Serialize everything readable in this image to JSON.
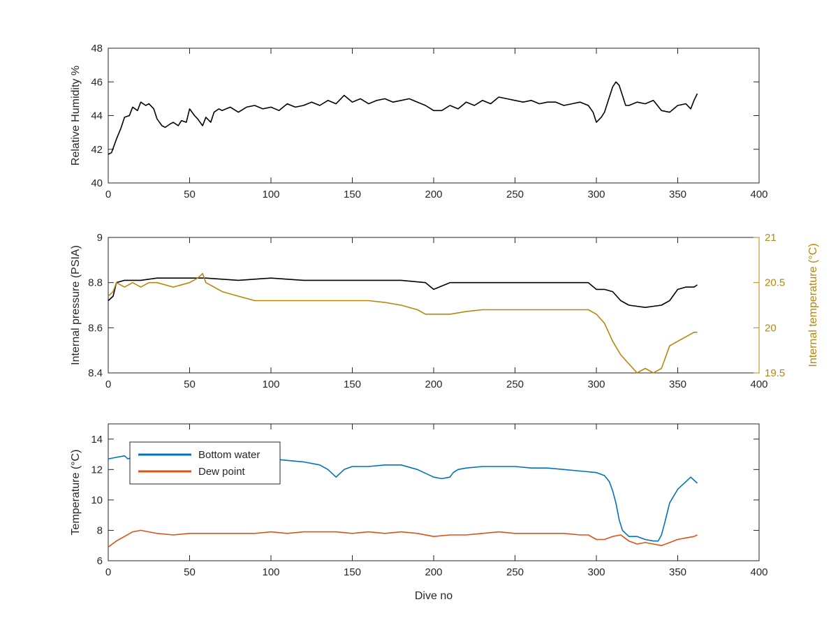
{
  "chart_data": [
    {
      "type": "line",
      "title": "",
      "xlabel": "",
      "ylabel": "Relative Humidity %",
      "xlim": [
        0,
        400
      ],
      "ylim": [
        40,
        48
      ],
      "x_ticks": [
        0,
        50,
        100,
        150,
        200,
        250,
        300,
        350,
        400
      ],
      "y_ticks": [
        40,
        42,
        44,
        46,
        48
      ],
      "grid": false,
      "series": [
        {
          "color": "#000000",
          "x": [
            0,
            2,
            5,
            8,
            10,
            13,
            15,
            18,
            20,
            23,
            25,
            28,
            30,
            33,
            35,
            38,
            40,
            43,
            45,
            48,
            50,
            53,
            55,
            58,
            60,
            63,
            65,
            68,
            70,
            75,
            80,
            85,
            90,
            95,
            100,
            105,
            110,
            115,
            120,
            125,
            130,
            135,
            140,
            145,
            150,
            155,
            160,
            165,
            170,
            175,
            180,
            185,
            190,
            195,
            200,
            205,
            210,
            215,
            220,
            225,
            230,
            235,
            240,
            245,
            250,
            255,
            260,
            265,
            270,
            275,
            280,
            285,
            290,
            295,
            298,
            300,
            303,
            305,
            308,
            310,
            312,
            314,
            316,
            318,
            320,
            325,
            330,
            335,
            340,
            345,
            350,
            355,
            358,
            360,
            362
          ],
          "y": [
            41.7,
            41.8,
            42.6,
            43.3,
            43.9,
            44.0,
            44.5,
            44.3,
            44.8,
            44.6,
            44.7,
            44.4,
            43.8,
            43.4,
            43.3,
            43.5,
            43.6,
            43.4,
            43.7,
            43.6,
            44.4,
            44.0,
            43.8,
            43.4,
            43.9,
            43.6,
            44.2,
            44.4,
            44.3,
            44.5,
            44.2,
            44.5,
            44.6,
            44.4,
            44.5,
            44.3,
            44.7,
            44.5,
            44.6,
            44.8,
            44.6,
            44.9,
            44.7,
            45.2,
            44.8,
            45.0,
            44.7,
            44.9,
            45.0,
            44.8,
            44.9,
            45.0,
            44.8,
            44.6,
            44.3,
            44.3,
            44.6,
            44.4,
            44.8,
            44.6,
            44.9,
            44.7,
            45.1,
            45.0,
            44.9,
            44.8,
            44.9,
            44.7,
            44.8,
            44.8,
            44.6,
            44.7,
            44.8,
            44.6,
            44.2,
            43.6,
            43.9,
            44.2,
            45.1,
            45.7,
            46.0,
            45.8,
            45.2,
            44.6,
            44.6,
            44.8,
            44.7,
            44.9,
            44.3,
            44.2,
            44.6,
            44.7,
            44.4,
            44.9,
            45.3
          ]
        }
      ]
    },
    {
      "type": "line",
      "title": "",
      "xlabel": "",
      "ylabel": "Internal pressure (PSIA)",
      "ylabel_right": "Internal temperature (°C)",
      "xlim": [
        0,
        400
      ],
      "ylim": [
        8.4,
        9
      ],
      "ylim_right": [
        19.5,
        21
      ],
      "x_ticks": [
        0,
        50,
        100,
        150,
        200,
        250,
        300,
        350,
        400
      ],
      "y_ticks": [
        8.4,
        8.6,
        8.8,
        9
      ],
      "y_ticks_right": [
        19.5,
        20,
        20.5,
        21
      ],
      "y_tick_labels": [
        "8.4",
        "8.6",
        "8.8",
        "9"
      ],
      "y_tick_labels_right": [
        "19.5",
        "20",
        "20.5",
        "21"
      ],
      "grid": false,
      "series": [
        {
          "color": "#000000",
          "axis": "left",
          "x": [
            0,
            3,
            5,
            10,
            20,
            30,
            40,
            50,
            60,
            80,
            100,
            120,
            140,
            160,
            180,
            195,
            200,
            210,
            220,
            240,
            260,
            280,
            295,
            300,
            305,
            310,
            315,
            320,
            330,
            340,
            345,
            350,
            355,
            360,
            362
          ],
          "y": [
            8.72,
            8.74,
            8.8,
            8.81,
            8.81,
            8.82,
            8.82,
            8.82,
            8.82,
            8.81,
            8.82,
            8.81,
            8.81,
            8.81,
            8.81,
            8.8,
            8.77,
            8.8,
            8.8,
            8.8,
            8.8,
            8.8,
            8.8,
            8.77,
            8.77,
            8.76,
            8.72,
            8.7,
            8.69,
            8.7,
            8.72,
            8.77,
            8.78,
            8.78,
            8.79
          ]
        },
        {
          "color": "#B8860B",
          "axis": "right",
          "x": [
            0,
            3,
            5,
            10,
            15,
            20,
            25,
            30,
            40,
            50,
            55,
            58,
            60,
            65,
            70,
            80,
            90,
            100,
            110,
            120,
            130,
            140,
            150,
            160,
            170,
            180,
            190,
            195,
            200,
            210,
            220,
            230,
            240,
            250,
            260,
            270,
            280,
            290,
            295,
            300,
            305,
            310,
            315,
            320,
            325,
            330,
            335,
            340,
            342,
            345,
            350,
            355,
            360,
            362
          ],
          "y": [
            20.35,
            20.4,
            20.5,
            20.45,
            20.5,
            20.45,
            20.5,
            20.5,
            20.45,
            20.5,
            20.55,
            20.6,
            20.5,
            20.45,
            20.4,
            20.35,
            20.3,
            20.3,
            20.3,
            20.3,
            20.3,
            20.3,
            20.3,
            20.3,
            20.28,
            20.25,
            20.2,
            20.15,
            20.15,
            20.15,
            20.18,
            20.2,
            20.2,
            20.2,
            20.2,
            20.2,
            20.2,
            20.2,
            20.2,
            20.15,
            20.05,
            19.85,
            19.7,
            19.6,
            19.5,
            19.55,
            19.5,
            19.55,
            19.65,
            19.8,
            19.85,
            19.9,
            19.95,
            19.95
          ]
        }
      ]
    },
    {
      "type": "line",
      "title": "",
      "xlabel": "Dive no",
      "ylabel": "Temperature (°C)",
      "xlim": [
        0,
        400
      ],
      "ylim": [
        6,
        15
      ],
      "x_ticks": [
        0,
        50,
        100,
        150,
        200,
        250,
        300,
        350,
        400
      ],
      "y_ticks": [
        6,
        8,
        10,
        12,
        14
      ],
      "legend_position": "top-left",
      "grid": false,
      "series": [
        {
          "name": "Bottom water",
          "color": "#0072BD",
          "x": [
            0,
            5,
            10,
            12,
            15,
            20,
            30,
            40,
            50,
            60,
            70,
            80,
            90,
            100,
            110,
            120,
            130,
            135,
            140,
            145,
            150,
            160,
            170,
            180,
            190,
            200,
            205,
            210,
            212,
            215,
            220,
            230,
            240,
            250,
            260,
            270,
            280,
            290,
            300,
            305,
            308,
            310,
            312,
            314,
            316,
            318,
            320,
            325,
            330,
            335,
            338,
            340,
            342,
            345,
            350,
            355,
            358,
            360,
            362
          ],
          "y": [
            12.7,
            12.8,
            12.9,
            12.7,
            12.8,
            12.8,
            12.7,
            12.8,
            12.7,
            12.7,
            12.7,
            12.7,
            12.6,
            12.7,
            12.6,
            12.5,
            12.3,
            12.0,
            11.5,
            12.0,
            12.2,
            12.2,
            12.3,
            12.3,
            12.0,
            11.5,
            11.4,
            11.5,
            11.8,
            12.0,
            12.1,
            12.2,
            12.2,
            12.2,
            12.1,
            12.1,
            12.0,
            11.9,
            11.8,
            11.6,
            11.2,
            10.6,
            9.8,
            8.7,
            8.0,
            7.8,
            7.6,
            7.6,
            7.4,
            7.3,
            7.3,
            7.7,
            8.5,
            9.8,
            10.7,
            11.2,
            11.5,
            11.3,
            11.1
          ]
        },
        {
          "name": "Dew point",
          "color": "#D95319",
          "x": [
            0,
            5,
            10,
            15,
            20,
            25,
            30,
            40,
            50,
            60,
            70,
            80,
            90,
            100,
            110,
            120,
            130,
            140,
            150,
            160,
            170,
            180,
            190,
            200,
            210,
            220,
            230,
            240,
            250,
            260,
            270,
            280,
            290,
            295,
            300,
            305,
            310,
            315,
            320,
            325,
            330,
            335,
            340,
            345,
            350,
            355,
            360,
            362
          ],
          "y": [
            6.9,
            7.3,
            7.6,
            7.9,
            8.0,
            7.9,
            7.8,
            7.7,
            7.8,
            7.8,
            7.8,
            7.8,
            7.8,
            7.9,
            7.8,
            7.9,
            7.9,
            7.9,
            7.8,
            7.9,
            7.8,
            7.9,
            7.8,
            7.6,
            7.7,
            7.7,
            7.8,
            7.9,
            7.8,
            7.8,
            7.8,
            7.8,
            7.7,
            7.7,
            7.4,
            7.4,
            7.6,
            7.7,
            7.3,
            7.1,
            7.2,
            7.1,
            7.0,
            7.2,
            7.4,
            7.5,
            7.6,
            7.7
          ]
        }
      ]
    }
  ]
}
